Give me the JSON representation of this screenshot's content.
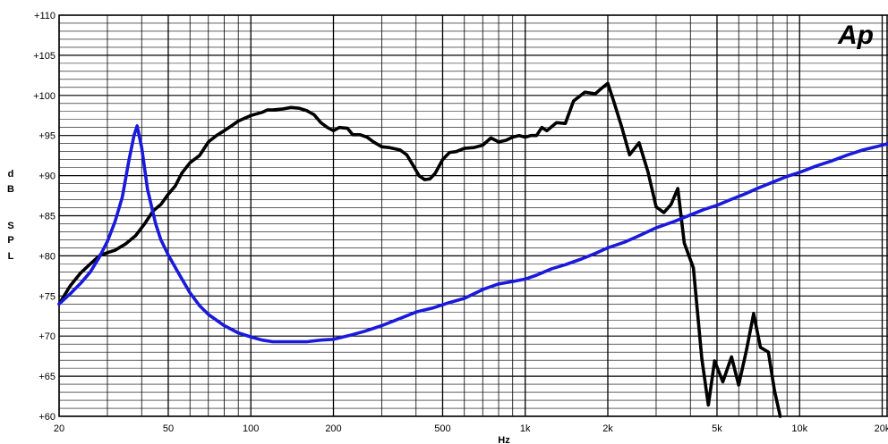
{
  "chart_data": {
    "type": "line",
    "title": "",
    "logo_text": "Ap",
    "xlabel": "Hz",
    "ylabel": "dB SPL",
    "x_scale": "log",
    "xlim": [
      20,
      21000
    ],
    "ylim": [
      60,
      110
    ],
    "grid": true,
    "x_tick_values": [
      20,
      50,
      100,
      200,
      500,
      1000,
      2000,
      5000,
      10000,
      20000
    ],
    "x_tick_labels": [
      "20",
      "50",
      "100",
      "200",
      "500",
      "1k",
      "2k",
      "5k",
      "10k",
      "20k"
    ],
    "y_tick_values": [
      60,
      65,
      70,
      75,
      80,
      85,
      90,
      95,
      100,
      105,
      110
    ],
    "y_tick_labels": [
      "+60",
      "+65",
      "+70",
      "+75",
      "+80",
      "+85",
      "+90",
      "+95",
      "+100",
      "+105",
      "+110"
    ],
    "series": [
      {
        "color": "#000000",
        "points": [
          [
            20,
            74.0
          ],
          [
            22,
            76.3
          ],
          [
            24,
            77.9
          ],
          [
            26,
            79.0
          ],
          [
            28,
            80.0
          ],
          [
            30,
            80.4
          ],
          [
            32,
            80.7
          ],
          [
            35,
            81.5
          ],
          [
            38,
            82.5
          ],
          [
            41,
            84.0
          ],
          [
            44,
            85.6
          ],
          [
            47,
            86.4
          ],
          [
            50,
            87.7
          ],
          [
            53,
            88.7
          ],
          [
            56,
            90.3
          ],
          [
            60,
            91.6
          ],
          [
            65,
            92.5
          ],
          [
            70,
            94.2
          ],
          [
            75,
            95.0
          ],
          [
            80,
            95.6
          ],
          [
            85,
            96.2
          ],
          [
            90,
            96.8
          ],
          [
            100,
            97.5
          ],
          [
            110,
            97.9
          ],
          [
            115,
            98.2
          ],
          [
            120,
            98.2
          ],
          [
            130,
            98.3
          ],
          [
            140,
            98.5
          ],
          [
            150,
            98.4
          ],
          [
            160,
            98.1
          ],
          [
            170,
            97.6
          ],
          [
            180,
            96.6
          ],
          [
            190,
            96.0
          ],
          [
            200,
            95.6
          ],
          [
            210,
            96.0
          ],
          [
            225,
            95.9
          ],
          [
            235,
            95.1
          ],
          [
            250,
            95.1
          ],
          [
            265,
            94.8
          ],
          [
            280,
            94.2
          ],
          [
            300,
            93.6
          ],
          [
            320,
            93.5
          ],
          [
            350,
            93.2
          ],
          [
            370,
            92.6
          ],
          [
            390,
            91.3
          ],
          [
            410,
            90.0
          ],
          [
            430,
            89.5
          ],
          [
            450,
            89.6
          ],
          [
            470,
            90.3
          ],
          [
            500,
            92.0
          ],
          [
            530,
            92.9
          ],
          [
            560,
            93.0
          ],
          [
            600,
            93.4
          ],
          [
            650,
            93.5
          ],
          [
            700,
            93.8
          ],
          [
            750,
            94.7
          ],
          [
            800,
            94.2
          ],
          [
            850,
            94.4
          ],
          [
            900,
            94.8
          ],
          [
            950,
            95.0
          ],
          [
            1000,
            94.8
          ],
          [
            1050,
            95.0
          ],
          [
            1100,
            95.0
          ],
          [
            1150,
            96.0
          ],
          [
            1200,
            95.6
          ],
          [
            1300,
            96.6
          ],
          [
            1400,
            96.5
          ],
          [
            1500,
            99.3
          ],
          [
            1650,
            100.4
          ],
          [
            1800,
            100.2
          ],
          [
            1900,
            100.9
          ],
          [
            2000,
            101.5
          ],
          [
            2100,
            99.3
          ],
          [
            2250,
            96.0
          ],
          [
            2400,
            92.6
          ],
          [
            2600,
            94.1
          ],
          [
            2800,
            90.5
          ],
          [
            3000,
            86.1
          ],
          [
            3200,
            85.4
          ],
          [
            3400,
            86.4
          ],
          [
            3600,
            88.4
          ],
          [
            3800,
            81.6
          ],
          [
            4100,
            78.5
          ],
          [
            4400,
            67.2
          ],
          [
            4650,
            61.4
          ],
          [
            4900,
            66.9
          ],
          [
            5250,
            64.3
          ],
          [
            5650,
            67.4
          ],
          [
            6000,
            63.9
          ],
          [
            6400,
            68.2
          ],
          [
            6800,
            72.8
          ],
          [
            7200,
            68.6
          ],
          [
            7700,
            68.0
          ],
          [
            8100,
            63.2
          ],
          [
            8500,
            60.0
          ]
        ]
      },
      {
        "color": "#1a1adc",
        "points": [
          [
            20,
            74.0
          ],
          [
            22,
            75.3
          ],
          [
            24,
            76.6
          ],
          [
            26,
            78.0
          ],
          [
            28,
            79.8
          ],
          [
            30,
            81.8
          ],
          [
            32,
            84.3
          ],
          [
            34,
            87.3
          ],
          [
            36,
            92.0
          ],
          [
            37.5,
            95.0
          ],
          [
            38.5,
            96.2
          ],
          [
            40,
            93.5
          ],
          [
            42,
            88.3
          ],
          [
            45,
            84.0
          ],
          [
            47,
            82.0
          ],
          [
            50,
            80.1
          ],
          [
            55,
            77.6
          ],
          [
            60,
            75.4
          ],
          [
            65,
            73.8
          ],
          [
            70,
            72.7
          ],
          [
            80,
            71.3
          ],
          [
            90,
            70.4
          ],
          [
            100,
            69.9
          ],
          [
            110,
            69.5
          ],
          [
            120,
            69.3
          ],
          [
            140,
            69.3
          ],
          [
            160,
            69.3
          ],
          [
            180,
            69.5
          ],
          [
            200,
            69.6
          ],
          [
            230,
            70.1
          ],
          [
            260,
            70.6
          ],
          [
            300,
            71.3
          ],
          [
            350,
            72.2
          ],
          [
            400,
            73.0
          ],
          [
            460,
            73.5
          ],
          [
            520,
            74.1
          ],
          [
            600,
            74.7
          ],
          [
            700,
            75.8
          ],
          [
            800,
            76.5
          ],
          [
            900,
            76.8
          ],
          [
            1000,
            77.1
          ],
          [
            1100,
            77.6
          ],
          [
            1250,
            78.4
          ],
          [
            1400,
            78.9
          ],
          [
            1600,
            79.6
          ],
          [
            1800,
            80.3
          ],
          [
            2000,
            81.0
          ],
          [
            2300,
            81.7
          ],
          [
            2600,
            82.5
          ],
          [
            3000,
            83.5
          ],
          [
            3500,
            84.3
          ],
          [
            4000,
            85.1
          ],
          [
            4500,
            85.8
          ],
          [
            5000,
            86.3
          ],
          [
            5600,
            87.0
          ],
          [
            6300,
            87.7
          ],
          [
            7000,
            88.4
          ],
          [
            8000,
            89.2
          ],
          [
            9000,
            89.9
          ],
          [
            10000,
            90.4
          ],
          [
            11500,
            91.2
          ],
          [
            13000,
            91.8
          ],
          [
            15000,
            92.6
          ],
          [
            17000,
            93.2
          ],
          [
            19000,
            93.6
          ],
          [
            21000,
            94.0
          ]
        ]
      }
    ]
  }
}
